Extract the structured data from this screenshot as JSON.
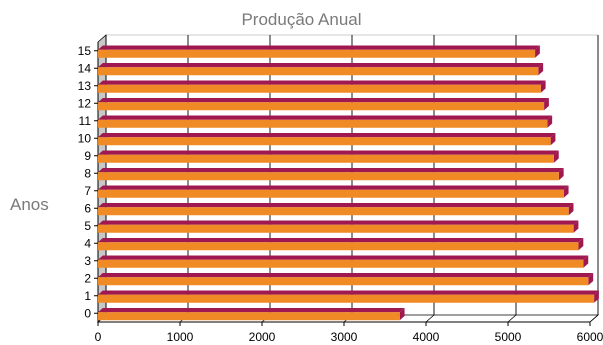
{
  "chart_data": {
    "type": "bar",
    "orientation": "horizontal",
    "title": "Produção Anual",
    "ylabel": "Anos",
    "xlabel": "",
    "categories": [
      "0",
      "1",
      "2",
      "3",
      "4",
      "5",
      "6",
      "7",
      "8",
      "9",
      "10",
      "11",
      "12",
      "13",
      "14",
      "15"
    ],
    "values": [
      3680,
      6050,
      5980,
      5920,
      5860,
      5800,
      5740,
      5680,
      5620,
      5560,
      5520,
      5480,
      5440,
      5400,
      5370,
      5330
    ],
    "xlim": [
      0,
      6000
    ],
    "xticks": [
      "0",
      "1000",
      "2000",
      "3000",
      "4000",
      "5000",
      "6000"
    ],
    "grid": true,
    "legend": "none",
    "colors": {
      "bar_front": "#f08a24",
      "bar_top": "#a01850",
      "bar_side": "#a01850",
      "wall": "#c8c8c8",
      "grid": "#000000",
      "title": "#7a7a7a"
    }
  }
}
